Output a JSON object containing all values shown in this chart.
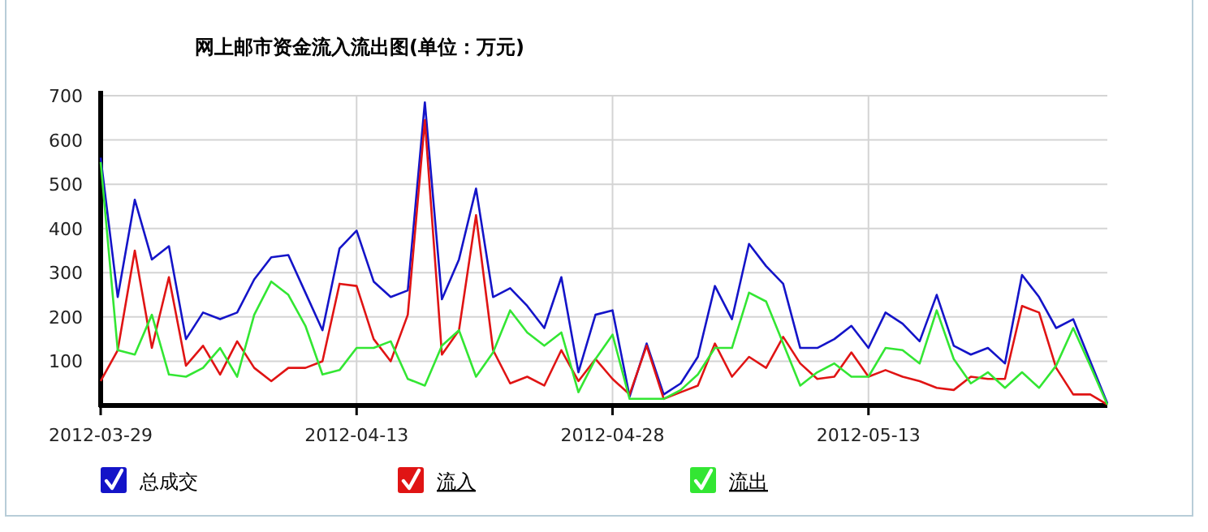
{
  "chart_data": {
    "type": "line",
    "title": "网上邮市资金流入流出图(单位：万元)",
    "x": [
      "2012-03-29",
      "2012-03-30",
      "2012-03-31",
      "2012-04-01",
      "2012-04-02",
      "2012-04-03",
      "2012-04-04",
      "2012-04-05",
      "2012-04-06",
      "2012-04-07",
      "2012-04-08",
      "2012-04-09",
      "2012-04-10",
      "2012-04-11",
      "2012-04-12",
      "2012-04-13",
      "2012-04-14",
      "2012-04-15",
      "2012-04-16",
      "2012-04-17",
      "2012-04-18",
      "2012-04-19",
      "2012-04-20",
      "2012-04-21",
      "2012-04-22",
      "2012-04-23",
      "2012-04-24",
      "2012-04-25",
      "2012-04-26",
      "2012-04-27",
      "2012-04-28",
      "2012-04-29",
      "2012-04-30",
      "2012-05-01",
      "2012-05-02",
      "2012-05-03",
      "2012-05-04",
      "2012-05-05",
      "2012-05-06",
      "2012-05-07",
      "2012-05-08",
      "2012-05-09",
      "2012-05-10",
      "2012-05-11",
      "2012-05-12",
      "2012-05-13",
      "2012-05-14",
      "2012-05-15",
      "2012-05-16",
      "2012-05-17",
      "2012-05-18",
      "2012-05-19",
      "2012-05-20",
      "2012-05-21",
      "2012-05-22",
      "2012-05-23",
      "2012-05-24",
      "2012-05-25",
      "2012-05-26",
      "2012-05-27"
    ],
    "series": [
      {
        "name": "总成交",
        "color": "#1414c8",
        "values": [
          560,
          245,
          465,
          330,
          360,
          150,
          210,
          195,
          210,
          285,
          335,
          340,
          255,
          170,
          355,
          395,
          280,
          245,
          260,
          685,
          240,
          330,
          490,
          245,
          265,
          225,
          175,
          290,
          75,
          205,
          215,
          20,
          140,
          25,
          50,
          110,
          270,
          195,
          365,
          315,
          275,
          130,
          130,
          150,
          180,
          130,
          210,
          185,
          145,
          250,
          135,
          115,
          130,
          95,
          295,
          245,
          175,
          195,
          100,
          5
        ]
      },
      {
        "name": "流入",
        "color": "#e01414",
        "values": [
          55,
          125,
          350,
          130,
          290,
          90,
          135,
          70,
          145,
          85,
          55,
          85,
          85,
          100,
          275,
          270,
          150,
          100,
          205,
          645,
          115,
          170,
          430,
          125,
          50,
          65,
          45,
          125,
          55,
          105,
          60,
          25,
          135,
          15,
          30,
          45,
          140,
          65,
          110,
          85,
          155,
          95,
          60,
          65,
          120,
          65,
          80,
          65,
          55,
          40,
          35,
          65,
          60,
          60,
          225,
          210,
          85,
          25,
          25,
          2
        ]
      },
      {
        "name": "流出",
        "color": "#33e633",
        "values": [
          550,
          125,
          115,
          205,
          70,
          65,
          85,
          130,
          65,
          205,
          280,
          250,
          180,
          70,
          80,
          130,
          130,
          145,
          60,
          45,
          135,
          170,
          65,
          120,
          215,
          165,
          135,
          165,
          30,
          105,
          160,
          15,
          15,
          15,
          35,
          70,
          130,
          130,
          255,
          235,
          140,
          45,
          75,
          95,
          65,
          65,
          130,
          125,
          95,
          215,
          105,
          50,
          75,
          40,
          75,
          40,
          90,
          175,
          90,
          2
        ]
      }
    ],
    "xlim": [
      "2012-03-29",
      "2012-05-27"
    ],
    "xticks": [
      {
        "value": "2012-03-29",
        "label": "2012-03-29"
      },
      {
        "value": "2012-04-13",
        "label": "2012-04-13"
      },
      {
        "value": "2012-04-28",
        "label": "2012-04-28"
      },
      {
        "value": "2012-05-13",
        "label": "2012-05-13"
      }
    ],
    "ylim": [
      0,
      700
    ],
    "yticks": [
      100,
      200,
      300,
      400,
      500,
      600,
      700
    ],
    "grid": true,
    "legend": "bottom",
    "marker": "none",
    "line_style": "solid"
  }
}
